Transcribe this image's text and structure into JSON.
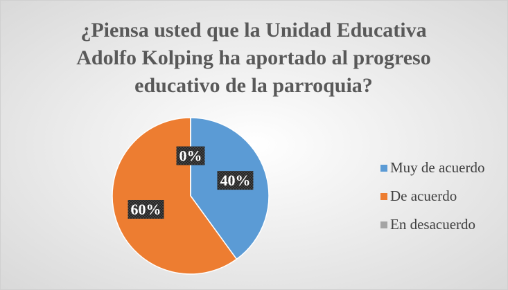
{
  "chart_data": {
    "type": "pie",
    "title": "¿Piensa usted que la Unidad Educativa Adolfo Kolping ha aportado al progreso educativo de la parroquia?",
    "categories": [
      "Muy de acuerdo",
      "De acuerdo",
      "En desacuerdo"
    ],
    "values": [
      40,
      60,
      0
    ],
    "value_labels": [
      "40%",
      "60%",
      "0%"
    ],
    "colors": [
      "#5b9bd5",
      "#ed7d31",
      "#a5a5a5"
    ],
    "legend": "right"
  }
}
